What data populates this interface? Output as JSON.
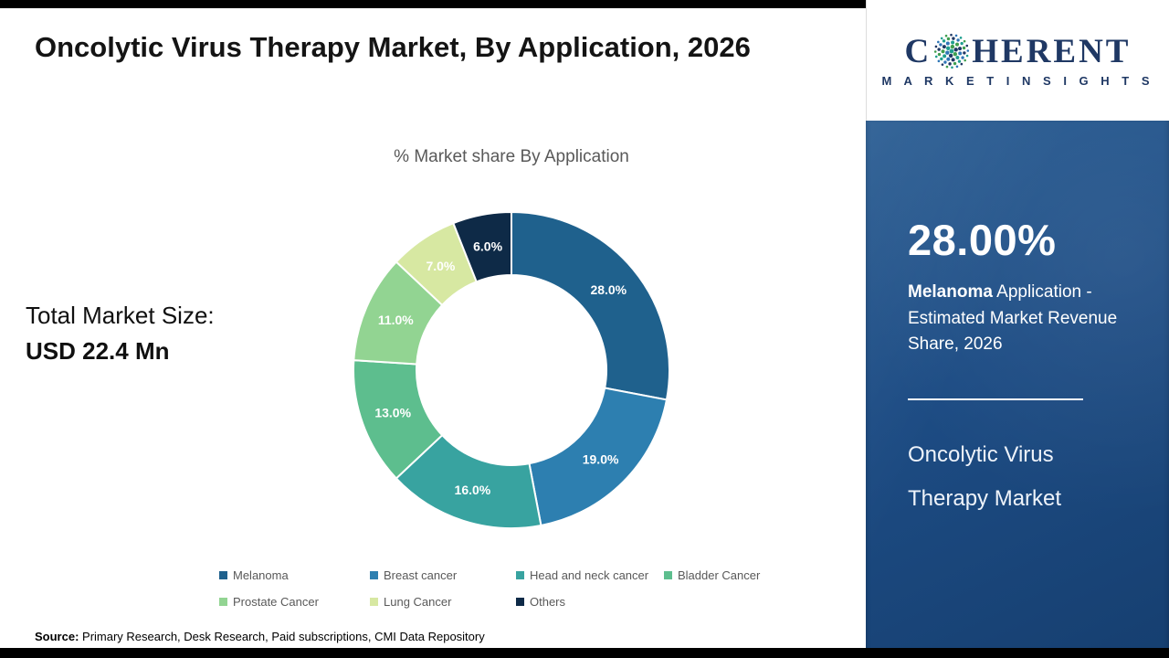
{
  "header": {
    "title": "Oncolytic Virus Therapy Market, By Application, 2026"
  },
  "logo": {
    "brand_first": "C",
    "brand_rest": "HERENT",
    "tagline": "M A R K E T   I N S I G H T S",
    "brand_color": "#1f3864",
    "dot_colors": [
      "#1f9e8e",
      "#3f9e4e",
      "#1f3864",
      "#2e75b6"
    ]
  },
  "left_panel": {
    "market_size_label": "Total Market Size:",
    "market_size_value": "USD 22.4 Mn"
  },
  "chart_data": {
    "type": "pie",
    "donut": true,
    "title": "% Market share By Application",
    "categories": [
      "Melanoma",
      "Breast cancer",
      "Head and neck cancer",
      "Bladder Cancer",
      "Prostate Cancer",
      "Lung Cancer",
      "Others"
    ],
    "values": [
      28.0,
      19.0,
      16.0,
      13.0,
      11.0,
      7.0,
      6.0
    ],
    "labels": [
      "28.0%",
      "19.0%",
      "16.0%",
      "13.0%",
      "11.0%",
      "7.0%",
      "6.0%"
    ],
    "colors": [
      "#1f618d",
      "#2d7fb0",
      "#38a3a0",
      "#5dbe8e",
      "#92d492",
      "#d7e8a2",
      "#0e2a47"
    ],
    "legend_position": "bottom",
    "start_angle_deg": 0,
    "direction": "clockwise"
  },
  "right_panel": {
    "highlight_value": "28.00%",
    "highlight_bold": "Melanoma",
    "highlight_rest": " Application - Estimated Market Revenue Share, 2026",
    "panel_title_line1": "Oncolytic Virus",
    "panel_title_line2": "Therapy Market",
    "panel_color": "#1d4c84"
  },
  "footer": {
    "source_label": "Source:",
    "source_text": " Primary Research, Desk Research, Paid subscriptions, CMI Data Repository"
  }
}
